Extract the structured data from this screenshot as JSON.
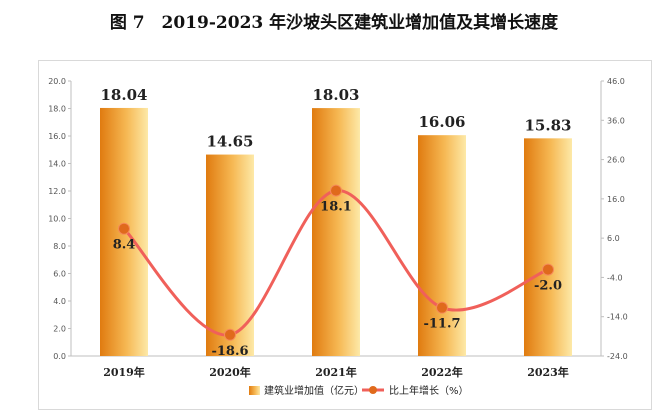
{
  "figure": {
    "title": "图 7　2019-2023 年沙坡头区建筑业增加值及其增长速度"
  },
  "chart_data": {
    "type": "bar",
    "categories": [
      "2019年",
      "2020年",
      "2021年",
      "2022年",
      "2023年"
    ],
    "series": [
      {
        "name": "建筑业增加值（亿元）",
        "type": "bar",
        "axis": "left",
        "values": [
          18.04,
          14.65,
          18.03,
          16.06,
          15.83
        ],
        "labels": [
          "18.04",
          "14.65",
          "18.03",
          "16.06",
          "15.83"
        ]
      },
      {
        "name": "比上年增长（%）",
        "type": "line",
        "axis": "right",
        "values": [
          8.4,
          -18.6,
          18.1,
          -11.7,
          -2.0
        ],
        "labels": [
          "8.4",
          "-18.6",
          "18.1",
          "-11.7",
          "-2.0"
        ]
      }
    ],
    "y_left": {
      "range": [
        0,
        20
      ],
      "ticks": [
        "0.0",
        "2.0",
        "4.0",
        "6.0",
        "8.0",
        "10.0",
        "12.0",
        "14.0",
        "16.0",
        "18.0",
        "20.0"
      ]
    },
    "y_right": {
      "range": [
        -24,
        46
      ],
      "ticks": [
        "-24.0",
        "-14.0",
        "-4.0",
        "6.0",
        "16.0",
        "26.0",
        "36.0",
        "46.0"
      ]
    },
    "grid": false,
    "legend_position": "bottom",
    "colors": {
      "bar_dark": "#e07b10",
      "bar_light": "#fde9a8",
      "line": "#f0605a",
      "marker": "#e06a1c"
    }
  }
}
